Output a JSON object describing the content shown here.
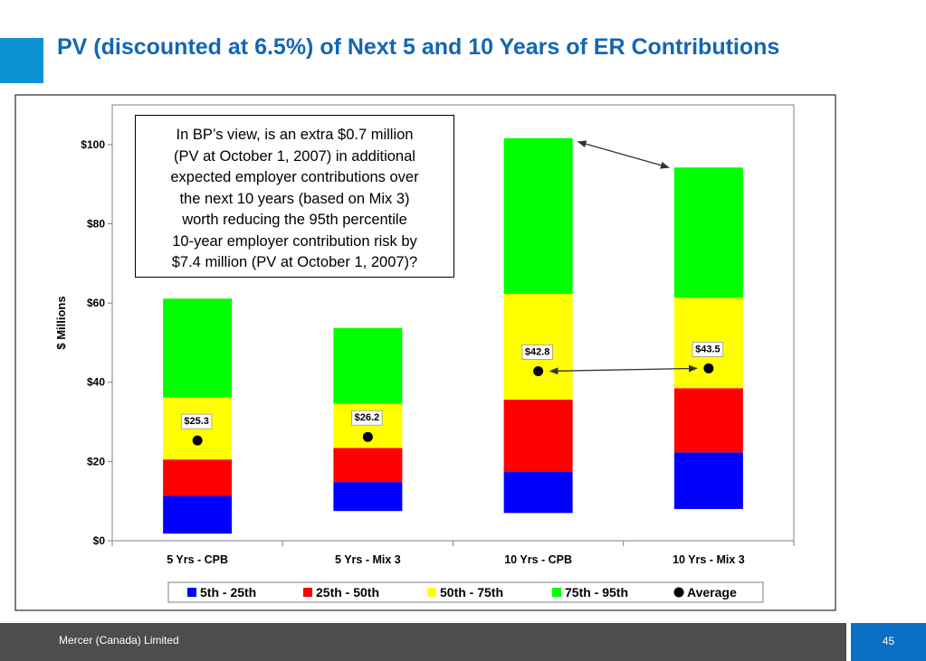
{
  "slide": {
    "title": "PV (discounted at 6.5%) of Next 5 and 10 Years of ER Contributions",
    "footer_text": "Mercer (Canada) Limited",
    "page_number": "45"
  },
  "callout": {
    "text_lines": [
      "In BP’s view, is an extra $0.7 million",
      "(PV at October 1, 2007) in additional",
      "expected employer contributions over",
      "the next 10 years (based on Mix 3)",
      "worth reducing the 95th percentile",
      "10-year employer contribution risk by",
      "$7.4 million (PV at October 1, 2007)?"
    ]
  },
  "chart_data": {
    "type": "bar",
    "stacked": "floating-range",
    "ylabel": "$ Millions",
    "ylim": [
      0,
      110
    ],
    "yticks": [
      0,
      20,
      40,
      60,
      80,
      100
    ],
    "ytick_labels": [
      "$0",
      "$20",
      "$40",
      "$60",
      "$80",
      "$100"
    ],
    "categories": [
      "5 Yrs - CPB",
      "5 Yrs - Mix 3",
      "10 Yrs - CPB",
      "10 Yrs - Mix 3"
    ],
    "percentiles": {
      "p5": [
        1.8,
        7.5,
        7.0,
        8.0
      ],
      "p25": [
        11.3,
        14.8,
        17.5,
        22.3
      ],
      "p50": [
        20.5,
        23.4,
        35.6,
        38.5
      ],
      "p75": [
        36.2,
        34.6,
        62.3,
        61.3
      ],
      "p95": [
        61.1,
        53.7,
        101.6,
        94.2
      ]
    },
    "series": [
      {
        "name": "5th - 25th",
        "color": "#0000ff"
      },
      {
        "name": "25th - 50th",
        "color": "#ff0000"
      },
      {
        "name": "50th - 75th",
        "color": "#ffff00"
      },
      {
        "name": "75th - 95th",
        "color": "#00ff00"
      }
    ],
    "average": {
      "name": "Average",
      "values": [
        25.3,
        26.2,
        42.8,
        43.5
      ],
      "labels": [
        "$25.3",
        "$26.2",
        "$42.8",
        "$43.5"
      ]
    },
    "legend_position": "bottom",
    "grid": false
  }
}
